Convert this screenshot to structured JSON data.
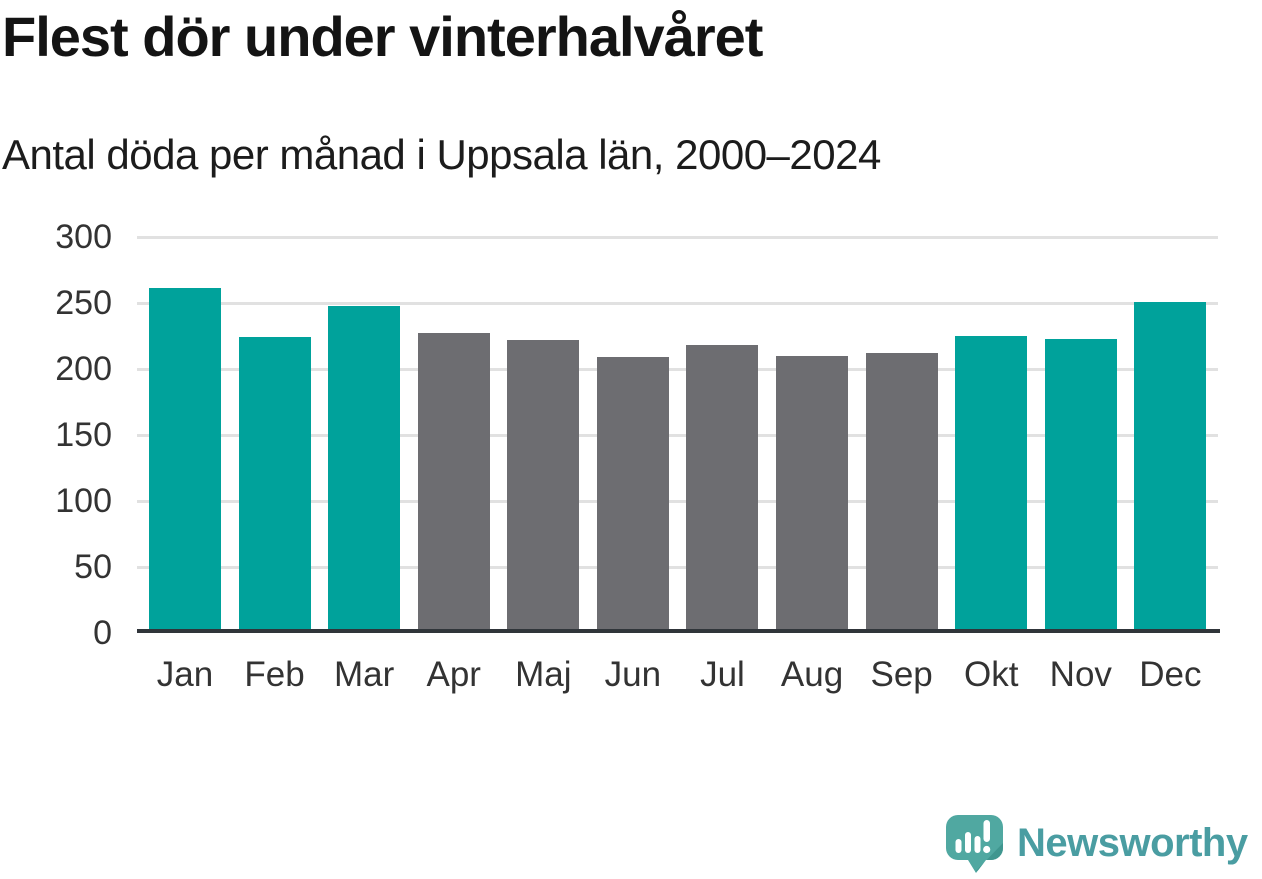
{
  "title": "Flest dör under vinterhalvåret",
  "subtitle": "Antal döda per månad i Uppsala län, 2000–2024",
  "chart_data": {
    "type": "bar",
    "categories": [
      "Jan",
      "Feb",
      "Mar",
      "Apr",
      "Maj",
      "Jun",
      "Jul",
      "Aug",
      "Sep",
      "Okt",
      "Nov",
      "Dec"
    ],
    "values": [
      261,
      224,
      248,
      227,
      222,
      209,
      218,
      210,
      212,
      225,
      223,
      251
    ],
    "color_keys": [
      "winter",
      "winter",
      "winter",
      "summer",
      "summer",
      "summer",
      "summer",
      "summer",
      "summer",
      "winter",
      "winter",
      "winter"
    ],
    "colors": {
      "winter": "#00a29b",
      "summer": "#6d6d71"
    },
    "title": "Flest dör under vinterhalvåret",
    "subtitle": "Antal döda per månad i Uppsala län, 2000–2024",
    "xlabel": "",
    "ylabel": "",
    "ylim": [
      0,
      300
    ],
    "yticks": [
      0,
      50,
      100,
      150,
      200,
      250,
      300
    ],
    "grid": true,
    "legend": false,
    "gridline_color": "#e1e1e1",
    "axis_line_color": "#30353a",
    "tick_label_color": "#333333"
  },
  "branding": {
    "name": "Newsworthy",
    "icon": "newsworthy-logo-icon",
    "text_color": "#4a9da2",
    "bubble_color": "#50a8a1",
    "bubble_shadow_color": "#3f968f"
  }
}
